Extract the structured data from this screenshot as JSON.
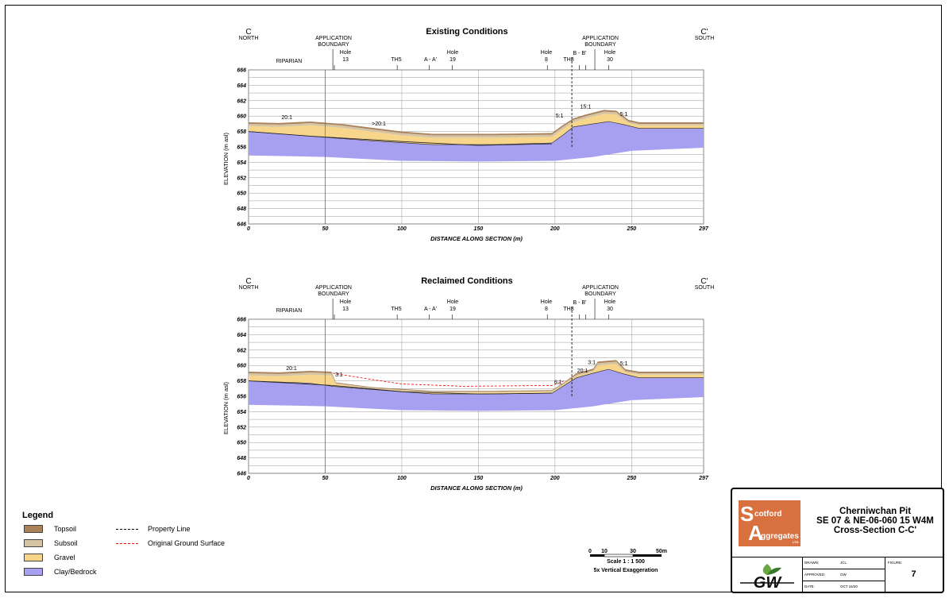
{
  "sections": [
    {
      "title": "Existing Conditions",
      "endpoints": {
        "left": "C",
        "left_dir": "NORTH",
        "right": "C'",
        "right_dir": "SOUTH"
      },
      "labels": {
        "riparian": "RIPARIAN",
        "app_left_1": "APPLICATION",
        "app_left_2": "BOUNDARY",
        "app_right_1": "APPLICATION",
        "app_right_2": "BOUNDARY",
        "hole13_a": "Hole",
        "hole13_b": "13",
        "th5": "TH5",
        "aa": "A - A'",
        "hole19_a": "Hole",
        "hole19_b": "19",
        "hole8_a": "Hole",
        "hole8_b": "8",
        "th8": "TH8",
        "bb": "B - B'",
        "hole30_a": "Hole",
        "hole30_b": "30"
      },
      "ylabel": "ELEVATION (m asl)",
      "xlabel": "DISTANCE ALONG SECTION (m)",
      "slopes": [
        "20:1",
        ">20:1",
        "5:1",
        "15:1",
        "5:1"
      ]
    },
    {
      "title": "Reclaimed Conditions",
      "endpoints": {
        "left": "C",
        "left_dir": "NORTH",
        "right": "C'",
        "right_dir": "SOUTH"
      },
      "labels": {
        "riparian": "RIPARIAN",
        "app_left_1": "APPLICATION",
        "app_left_2": "BOUNDARY",
        "app_right_1": "APPLICATION",
        "app_right_2": "BOUNDARY",
        "hole13_a": "Hole",
        "hole13_b": "13",
        "th5": "TH5",
        "aa": "A - A'",
        "hole19_a": "Hole",
        "hole19_b": "19",
        "hole8_a": "Hole",
        "hole8_b": "8",
        "th8": "TH8",
        "bb": "B - B'",
        "hole30_a": "Hole",
        "hole30_b": "30"
      },
      "ylabel": "ELEVATION (m asl)",
      "xlabel": "DISTANCE ALONG SECTION (m)",
      "slopes": [
        "20:1",
        "3:1",
        "6:1",
        "20:1",
        "3:1",
        "5:1"
      ]
    }
  ],
  "axis": {
    "x_ticks": [
      "0",
      "50",
      "100",
      "150",
      "200",
      "250",
      "297"
    ],
    "x_values": [
      0,
      50,
      100,
      150,
      200,
      250,
      297
    ],
    "y_ticks": [
      "666",
      "664",
      "662",
      "660",
      "658",
      "656",
      "654",
      "652",
      "650",
      "648",
      "646"
    ],
    "y_values": [
      666,
      664,
      662,
      660,
      658,
      656,
      654,
      652,
      650,
      648,
      646
    ],
    "xlim": [
      0,
      297
    ],
    "ylim": [
      646,
      666
    ]
  },
  "legend": {
    "title": "Legend",
    "topsoil": "Topsoil",
    "subsoil": "Subsoil",
    "gravel": "Gravel",
    "clay": "Clay/Bedrock",
    "property_line": "Property Line",
    "original_ground": "Original Ground Surface"
  },
  "colors": {
    "topsoil": "#a9825b",
    "subsoil": "#d5c4a4",
    "gravel": "#f7d58a",
    "clay": "#a7a0f0",
    "original": "#ff0000"
  },
  "scale": {
    "t0": "0",
    "t10": "10",
    "t30": "30",
    "t50": "50m",
    "ratio": "Scale 1 : 1 500",
    "exag": "5x Vertical Exaggeration"
  },
  "title_block": {
    "company_line1": "cotford",
    "company_line2": "ggregates",
    "company_s": "S",
    "company_a": "A",
    "company_ltd": "LTD",
    "project": "Cherniwchan Pit",
    "location": "SE 07 & NE-06-060 15 W4M",
    "drawing": "Cross-Section C-C'",
    "drawn_label": "DRAWN:",
    "drawn": "JCL",
    "approved_label": "APPROVED:",
    "approved": "GW",
    "date_label": "DATE:",
    "date": "OCT 16/20",
    "figure_label": "FIGURE:",
    "figure": "7",
    "gw_logo": "GW"
  }
}
